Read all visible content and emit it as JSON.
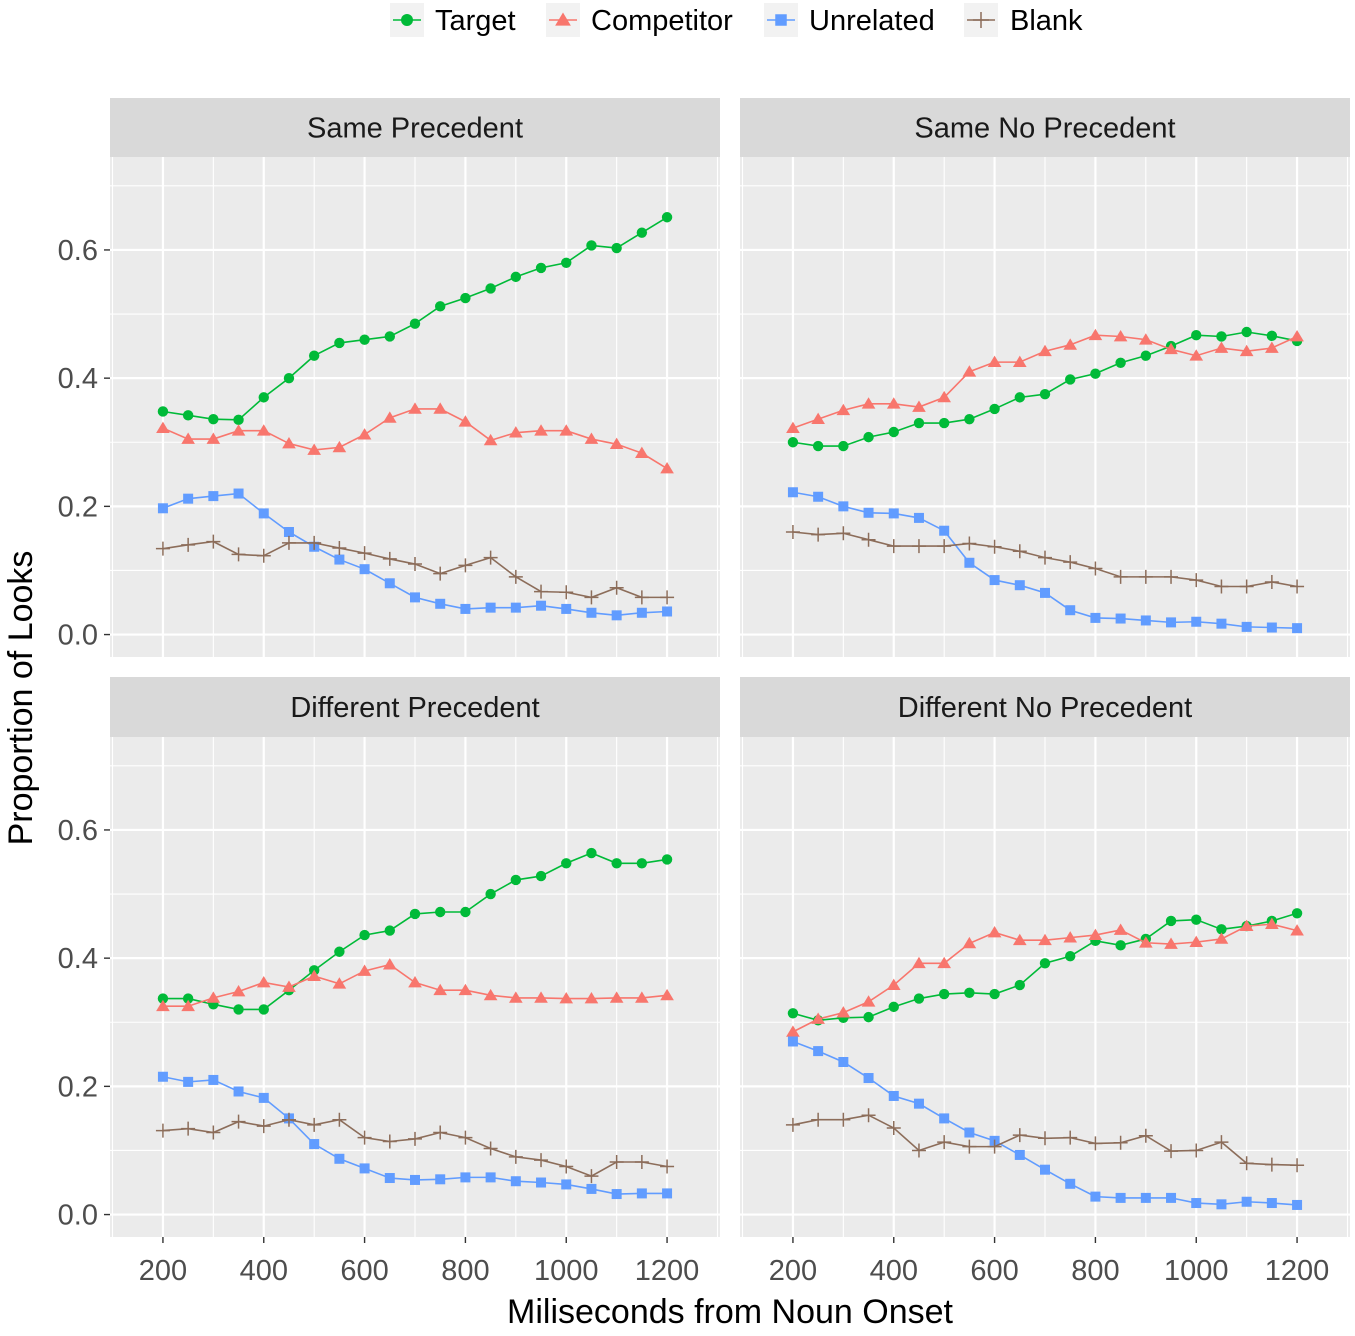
{
  "chart_data": {
    "type": "line",
    "xlabel": "Miliseconds from Noun Onset",
    "ylabel": "Proportion of Looks",
    "xlim": [
      95,
      1305
    ],
    "ylim": [
      -0.035,
      0.745
    ],
    "xticks": [
      200,
      400,
      600,
      800,
      1000,
      1200
    ],
    "yticks": [
      0.0,
      0.2,
      0.4,
      0.6
    ],
    "xtick_labels": [
      "200",
      "400",
      "600",
      "800",
      "1000",
      "1200"
    ],
    "ytick_labels": [
      "0.0",
      "0.2",
      "0.4",
      "0.6"
    ],
    "legend": {
      "position": "top",
      "entries": [
        {
          "name": "Target",
          "color": "#00BA38",
          "shape": "circle"
        },
        {
          "name": "Competitor",
          "color": "#F8766D",
          "shape": "triangle"
        },
        {
          "name": "Unrelated",
          "color": "#619CFF",
          "shape": "square"
        },
        {
          "name": "Blank",
          "color": "#8C6D5A",
          "shape": "plus"
        }
      ]
    },
    "x": [
      200,
      250,
      300,
      350,
      400,
      450,
      500,
      550,
      600,
      650,
      700,
      750,
      800,
      850,
      900,
      950,
      1000,
      1050,
      1100,
      1150,
      1200
    ],
    "panels": [
      {
        "title": "Same Precedent",
        "series": [
          {
            "name": "Target",
            "values": [
              0.348,
              0.342,
              0.336,
              0.335,
              0.37,
              0.4,
              0.435,
              0.455,
              0.46,
              0.465,
              0.485,
              0.512,
              0.525,
              0.54,
              0.558,
              0.572,
              0.58,
              0.607,
              0.603,
              0.627,
              0.651
            ]
          },
          {
            "name": "Competitor",
            "values": [
              0.322,
              0.305,
              0.305,
              0.318,
              0.318,
              0.298,
              0.288,
              0.292,
              0.312,
              0.338,
              0.352,
              0.352,
              0.332,
              0.303,
              0.315,
              0.318,
              0.318,
              0.305,
              0.297,
              0.283,
              0.259
            ]
          },
          {
            "name": "Unrelated",
            "values": [
              0.197,
              0.212,
              0.216,
              0.22,
              0.189,
              0.16,
              0.137,
              0.117,
              0.102,
              0.08,
              0.058,
              0.048,
              0.04,
              0.042,
              0.042,
              0.045,
              0.04,
              0.034,
              0.03,
              0.034,
              0.036
            ]
          },
          {
            "name": "Blank",
            "values": [
              0.134,
              0.14,
              0.145,
              0.125,
              0.123,
              0.143,
              0.143,
              0.135,
              0.127,
              0.118,
              0.11,
              0.095,
              0.108,
              0.12,
              0.09,
              0.067,
              0.066,
              0.058,
              0.073,
              0.058,
              0.058
            ]
          }
        ]
      },
      {
        "title": "Same No Precedent",
        "series": [
          {
            "name": "Target",
            "values": [
              0.3,
              0.294,
              0.294,
              0.308,
              0.316,
              0.33,
              0.33,
              0.336,
              0.352,
              0.37,
              0.375,
              0.398,
              0.407,
              0.424,
              0.435,
              0.45,
              0.467,
              0.465,
              0.472,
              0.466,
              0.458
            ]
          },
          {
            "name": "Competitor",
            "values": [
              0.322,
              0.336,
              0.35,
              0.36,
              0.36,
              0.355,
              0.37,
              0.41,
              0.425,
              0.425,
              0.442,
              0.452,
              0.467,
              0.465,
              0.46,
              0.445,
              0.435,
              0.447,
              0.442,
              0.447,
              0.465
            ]
          },
          {
            "name": "Unrelated",
            "values": [
              0.222,
              0.215,
              0.2,
              0.19,
              0.189,
              0.182,
              0.162,
              0.112,
              0.085,
              0.077,
              0.065,
              0.038,
              0.026,
              0.025,
              0.022,
              0.019,
              0.02,
              0.017,
              0.012,
              0.011,
              0.01
            ]
          },
          {
            "name": "Blank",
            "values": [
              0.16,
              0.156,
              0.158,
              0.148,
              0.138,
              0.138,
              0.138,
              0.142,
              0.137,
              0.13,
              0.12,
              0.113,
              0.103,
              0.09,
              0.09,
              0.09,
              0.085,
              0.075,
              0.075,
              0.082,
              0.075
            ]
          }
        ]
      },
      {
        "title": "Different Precedent",
        "series": [
          {
            "name": "Target",
            "values": [
              0.337,
              0.337,
              0.328,
              0.32,
              0.32,
              0.35,
              0.381,
              0.41,
              0.436,
              0.443,
              0.469,
              0.472,
              0.472,
              0.5,
              0.522,
              0.528,
              0.548,
              0.564,
              0.548,
              0.548,
              0.554
            ]
          },
          {
            "name": "Competitor",
            "values": [
              0.325,
              0.325,
              0.338,
              0.348,
              0.362,
              0.355,
              0.372,
              0.36,
              0.38,
              0.39,
              0.362,
              0.35,
              0.35,
              0.342,
              0.338,
              0.338,
              0.337,
              0.337,
              0.338,
              0.338,
              0.342
            ]
          },
          {
            "name": "Unrelated",
            "values": [
              0.215,
              0.207,
              0.21,
              0.192,
              0.182,
              0.15,
              0.11,
              0.087,
              0.072,
              0.057,
              0.054,
              0.055,
              0.058,
              0.058,
              0.052,
              0.05,
              0.047,
              0.04,
              0.032,
              0.033,
              0.033
            ]
          },
          {
            "name": "Blank",
            "values": [
              0.131,
              0.134,
              0.128,
              0.145,
              0.138,
              0.148,
              0.14,
              0.148,
              0.12,
              0.114,
              0.118,
              0.128,
              0.12,
              0.103,
              0.09,
              0.085,
              0.075,
              0.06,
              0.082,
              0.082,
              0.075
            ]
          }
        ]
      },
      {
        "title": "Different No Precedent",
        "series": [
          {
            "name": "Target",
            "values": [
              0.314,
              0.303,
              0.307,
              0.308,
              0.324,
              0.337,
              0.344,
              0.346,
              0.344,
              0.358,
              0.392,
              0.403,
              0.427,
              0.42,
              0.43,
              0.458,
              0.46,
              0.445,
              0.45,
              0.458,
              0.47
            ]
          },
          {
            "name": "Competitor",
            "values": [
              0.285,
              0.305,
              0.315,
              0.332,
              0.358,
              0.392,
              0.392,
              0.423,
              0.44,
              0.428,
              0.428,
              0.432,
              0.436,
              0.444,
              0.424,
              0.422,
              0.425,
              0.43,
              0.45,
              0.453,
              0.443
            ]
          },
          {
            "name": "Unrelated",
            "values": [
              0.27,
              0.255,
              0.238,
              0.213,
              0.185,
              0.173,
              0.15,
              0.128,
              0.115,
              0.093,
              0.07,
              0.048,
              0.028,
              0.026,
              0.026,
              0.026,
              0.018,
              0.016,
              0.02,
              0.018,
              0.015
            ]
          },
          {
            "name": "Blank",
            "values": [
              0.14,
              0.148,
              0.148,
              0.155,
              0.135,
              0.1,
              0.113,
              0.106,
              0.106,
              0.124,
              0.119,
              0.12,
              0.111,
              0.112,
              0.123,
              0.099,
              0.1,
              0.113,
              0.08,
              0.078,
              0.077
            ]
          }
        ]
      }
    ]
  }
}
